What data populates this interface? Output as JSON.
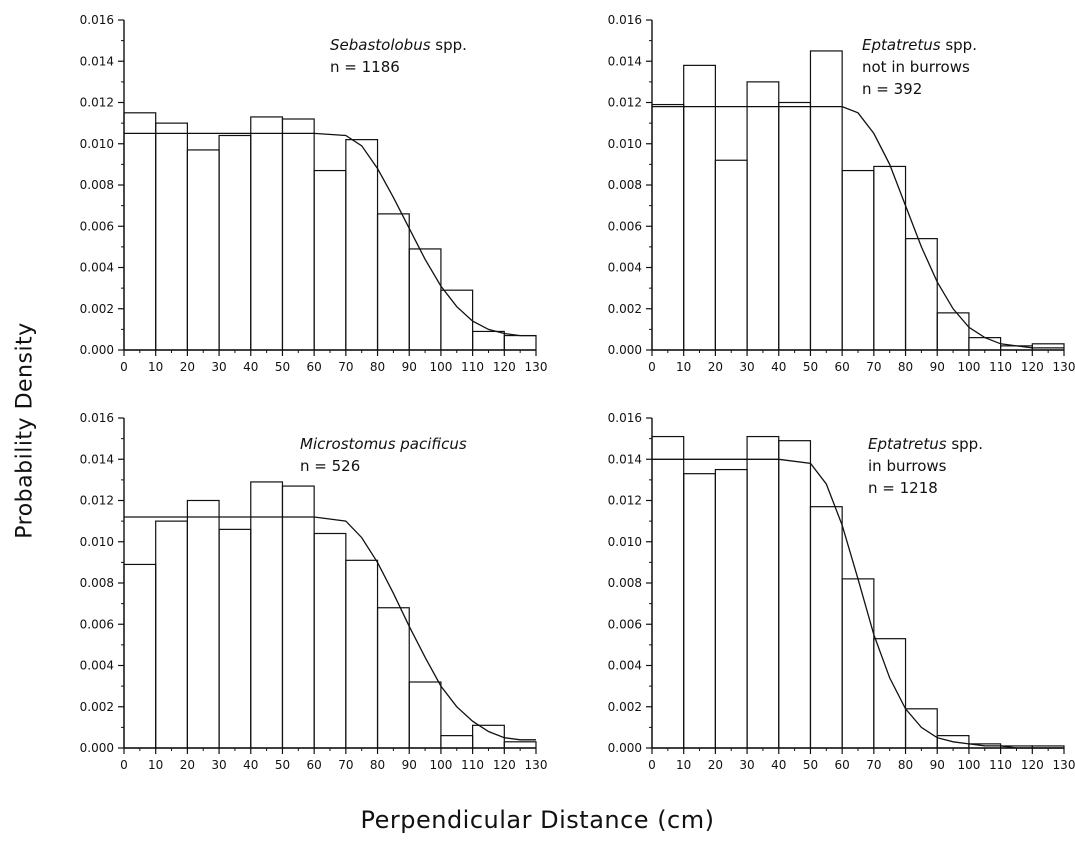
{
  "figure": {
    "ylabel": "Probability Density",
    "xlabel": "Perpendicular Distance (cm)"
  },
  "chart_data": [
    {
      "type": "bar",
      "panel": "top-left",
      "annotation_lines": [
        {
          "italic": "Sebastolobus",
          "rest": " spp."
        },
        {
          "italic": "",
          "rest": "n  =  1186"
        }
      ],
      "bin_edges": [
        0,
        10,
        20,
        30,
        40,
        50,
        60,
        70,
        80,
        90,
        100,
        110,
        120,
        130
      ],
      "values": [
        0.0115,
        0.011,
        0.0097,
        0.0104,
        0.0113,
        0.0112,
        0.0087,
        0.0102,
        0.0066,
        0.0049,
        0.0029,
        0.0009,
        0.0007
      ],
      "fit_curve": {
        "x": [
          0,
          10,
          20,
          30,
          40,
          50,
          60,
          70,
          75,
          80,
          85,
          90,
          95,
          100,
          105,
          110,
          115,
          120,
          125,
          130
        ],
        "y": [
          0.0105,
          0.0105,
          0.0105,
          0.0105,
          0.0105,
          0.0105,
          0.0105,
          0.0104,
          0.0099,
          0.0088,
          0.0074,
          0.0059,
          0.0044,
          0.0031,
          0.0021,
          0.0014,
          0.001,
          0.0008,
          0.0007,
          0.0007
        ]
      },
      "xlim": [
        0,
        130
      ],
      "ylim": [
        0,
        0.016
      ],
      "xticks": [
        "0",
        "10",
        "20",
        "30",
        "40",
        "50",
        "60",
        "70",
        "80",
        "90",
        "100",
        "110",
        "120",
        "130"
      ],
      "yticks": [
        "0.000",
        "0.002",
        "0.004",
        "0.006",
        "0.008",
        "0.010",
        "0.012",
        "0.014",
        "0.016"
      ]
    },
    {
      "type": "bar",
      "panel": "top-right",
      "annotation_lines": [
        {
          "italic": "Eptatretus",
          "rest": " spp."
        },
        {
          "italic": "",
          "rest": "not in burrows"
        },
        {
          "italic": "",
          "rest": "n  =  392"
        }
      ],
      "bin_edges": [
        0,
        10,
        20,
        30,
        40,
        50,
        60,
        70,
        80,
        90,
        100,
        110,
        120,
        130
      ],
      "values": [
        0.0119,
        0.0138,
        0.0092,
        0.013,
        0.012,
        0.0145,
        0.0087,
        0.0089,
        0.0054,
        0.0018,
        0.0006,
        0.0002,
        0.0003
      ],
      "fit_curve": {
        "x": [
          0,
          10,
          20,
          30,
          40,
          50,
          60,
          65,
          70,
          75,
          80,
          85,
          90,
          95,
          100,
          105,
          110,
          115,
          120,
          125,
          130
        ],
        "y": [
          0.0118,
          0.0118,
          0.0118,
          0.0118,
          0.0118,
          0.0118,
          0.0118,
          0.0115,
          0.0105,
          0.009,
          0.007,
          0.005,
          0.0033,
          0.002,
          0.0011,
          0.0006,
          0.0003,
          0.0002,
          0.0001,
          0.0001,
          0.0001
        ]
      },
      "xlim": [
        0,
        130
      ],
      "ylim": [
        0,
        0.016
      ],
      "xticks": [
        "0",
        "10",
        "20",
        "30",
        "40",
        "50",
        "60",
        "70",
        "80",
        "90",
        "100",
        "110",
        "120",
        "130"
      ],
      "yticks": [
        "0.000",
        "0.002",
        "0.004",
        "0.006",
        "0.008",
        "0.010",
        "0.012",
        "0.014",
        "0.016"
      ]
    },
    {
      "type": "bar",
      "panel": "bottom-left",
      "annotation_lines": [
        {
          "italic": "Microstomus pacificus",
          "rest": ""
        },
        {
          "italic": "",
          "rest": "n  =  526"
        }
      ],
      "bin_edges": [
        0,
        10,
        20,
        30,
        40,
        50,
        60,
        70,
        80,
        90,
        100,
        110,
        120,
        130
      ],
      "values": [
        0.0089,
        0.011,
        0.012,
        0.0106,
        0.0129,
        0.0127,
        0.0104,
        0.0091,
        0.0068,
        0.0032,
        0.0006,
        0.0011,
        0.0003
      ],
      "fit_curve": {
        "x": [
          0,
          10,
          20,
          30,
          40,
          50,
          60,
          70,
          75,
          80,
          85,
          90,
          95,
          100,
          105,
          110,
          115,
          120,
          125,
          130
        ],
        "y": [
          0.0112,
          0.0112,
          0.0112,
          0.0112,
          0.0112,
          0.0112,
          0.0112,
          0.011,
          0.0102,
          0.009,
          0.0075,
          0.0059,
          0.0044,
          0.003,
          0.002,
          0.0013,
          0.0008,
          0.0005,
          0.0004,
          0.0004
        ]
      },
      "xlim": [
        0,
        130
      ],
      "ylim": [
        0,
        0.016
      ],
      "xticks": [
        "0",
        "10",
        "20",
        "30",
        "40",
        "50",
        "60",
        "70",
        "80",
        "90",
        "100",
        "110",
        "120",
        "130"
      ],
      "yticks": [
        "0.000",
        "0.002",
        "0.004",
        "0.006",
        "0.008",
        "0.010",
        "0.012",
        "0.014",
        "0.016"
      ]
    },
    {
      "type": "bar",
      "panel": "bottom-right",
      "annotation_lines": [
        {
          "italic": "Eptatretus",
          "rest": " spp."
        },
        {
          "italic": "",
          "rest": "in burrows"
        },
        {
          "italic": "",
          "rest": "n  =  1218"
        }
      ],
      "bin_edges": [
        0,
        10,
        20,
        30,
        40,
        50,
        60,
        70,
        80,
        90,
        100,
        110,
        120,
        130
      ],
      "values": [
        0.0151,
        0.0133,
        0.0135,
        0.0151,
        0.0149,
        0.0117,
        0.0082,
        0.0053,
        0.0019,
        0.0006,
        0.0002,
        0.0001,
        0.0001
      ],
      "fit_curve": {
        "x": [
          0,
          10,
          20,
          30,
          40,
          50,
          55,
          60,
          65,
          70,
          75,
          80,
          85,
          90,
          95,
          100,
          105,
          110,
          115,
          120,
          125,
          130
        ],
        "y": [
          0.014,
          0.014,
          0.014,
          0.014,
          0.014,
          0.0138,
          0.0128,
          0.0108,
          0.0082,
          0.0055,
          0.0034,
          0.0019,
          0.001,
          0.0005,
          0.0003,
          0.0002,
          0.0001,
          0.0001,
          0.0,
          0.0,
          0.0,
          0.0
        ]
      },
      "xlim": [
        0,
        130
      ],
      "ylim": [
        0,
        0.016
      ],
      "xticks": [
        "0",
        "10",
        "20",
        "30",
        "40",
        "50",
        "60",
        "70",
        "80",
        "90",
        "100",
        "110",
        "120",
        "130"
      ],
      "yticks": [
        "0.000",
        "0.002",
        "0.004",
        "0.006",
        "0.008",
        "0.010",
        "0.012",
        "0.014",
        "0.016"
      ]
    }
  ]
}
